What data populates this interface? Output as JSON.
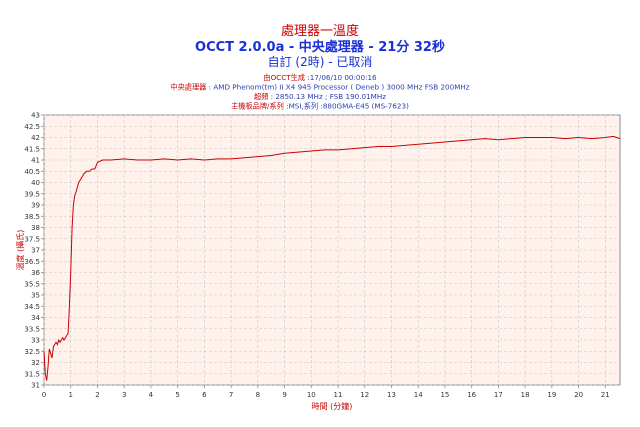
{
  "header": {
    "title": "處理器一溫度",
    "subtitle": "OCCT 2.0.0a - 中央處理器 - 21分 32秒",
    "subtitle2": "自訂 (2時) - 已取消"
  },
  "info": [
    {
      "label": "由OCCT生成",
      "value": " :17/06/10 00:00:16"
    },
    {
      "label": "中央處理器",
      "value": " : AMD Phenom(tm) II X4 945 Processor ( Deneb ) 3000 MHz FSB 200MHz"
    },
    {
      "label": "超頻",
      "value": " : 2850.13 MHz ; FSB 190.01MHz"
    },
    {
      "label": "主機板品牌/系列",
      "value": " :MSI,系列 :880GMA-E45 (MS-7623)"
    }
  ],
  "colors": {
    "line": "#cc0000",
    "plot_bg": "#fff2ec",
    "grid": "#c8c8c8"
  },
  "chart_data": {
    "type": "line",
    "title": "處理器一溫度",
    "xlabel": "時間 (分鐘)",
    "ylabel": "溫度 (攝氏)",
    "xlim": [
      0,
      21.55
    ],
    "ylim": [
      31,
      43
    ],
    "x_ticks": [
      0,
      1,
      2,
      3,
      4,
      5,
      6,
      7,
      8,
      9,
      10,
      11,
      12,
      13,
      14,
      15,
      16,
      17,
      18,
      19,
      20,
      21
    ],
    "y_ticks": [
      31,
      31.5,
      32,
      32.5,
      33,
      33.5,
      34,
      34.5,
      35,
      35.5,
      36,
      36.5,
      37,
      37.5,
      38,
      38.5,
      39,
      39.5,
      40,
      40.5,
      41,
      41.5,
      42,
      42.5,
      43
    ],
    "grid": true,
    "legend": "none",
    "x": [
      0,
      0.05,
      0.1,
      0.15,
      0.2,
      0.25,
      0.3,
      0.35,
      0.4,
      0.45,
      0.5,
      0.55,
      0.6,
      0.65,
      0.7,
      0.75,
      0.8,
      0.85,
      0.9,
      0.95,
      1.0,
      1.05,
      1.1,
      1.15,
      1.2,
      1.25,
      1.3,
      1.4,
      1.5,
      1.6,
      1.7,
      1.8,
      1.9,
      2.0,
      2.2,
      2.5,
      3,
      3.5,
      4,
      4.5,
      5,
      5.5,
      6,
      6.5,
      7,
      7.5,
      8,
      8.5,
      9,
      9.5,
      10,
      10.5,
      11,
      11.5,
      12,
      12.5,
      13,
      13.5,
      14,
      14.5,
      15,
      15.5,
      16,
      16.5,
      17,
      17.5,
      18,
      18.5,
      19,
      19.5,
      20,
      20.5,
      21,
      21.3,
      21.55
    ],
    "y": [
      32.5,
      31.5,
      31.2,
      31.8,
      32.6,
      32.4,
      32.2,
      32.7,
      32.8,
      32.9,
      32.8,
      33.0,
      32.9,
      33.0,
      33.1,
      33.0,
      33.1,
      33.2,
      33.3,
      34.5,
      36.0,
      38.0,
      39.0,
      39.4,
      39.6,
      39.8,
      40.0,
      40.2,
      40.4,
      40.5,
      40.5,
      40.6,
      40.6,
      40.9,
      41.0,
      41.0,
      41.05,
      41.0,
      41.0,
      41.05,
      41.0,
      41.05,
      41.0,
      41.05,
      41.05,
      41.1,
      41.15,
      41.2,
      41.3,
      41.35,
      41.4,
      41.45,
      41.45,
      41.5,
      41.55,
      41.6,
      41.6,
      41.65,
      41.7,
      41.75,
      41.8,
      41.85,
      41.9,
      41.95,
      41.9,
      41.95,
      42.0,
      42.0,
      42.0,
      41.95,
      42.0,
      41.95,
      42.0,
      42.05,
      41.95
    ]
  }
}
